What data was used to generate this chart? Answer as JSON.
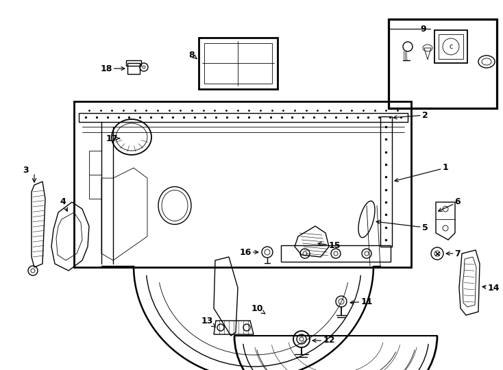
{
  "background_color": "#ffffff",
  "line_color": "#000000",
  "lw_main": 1.5,
  "lw_med": 1.0,
  "lw_thin": 0.6,
  "label_fontsize": 9
}
